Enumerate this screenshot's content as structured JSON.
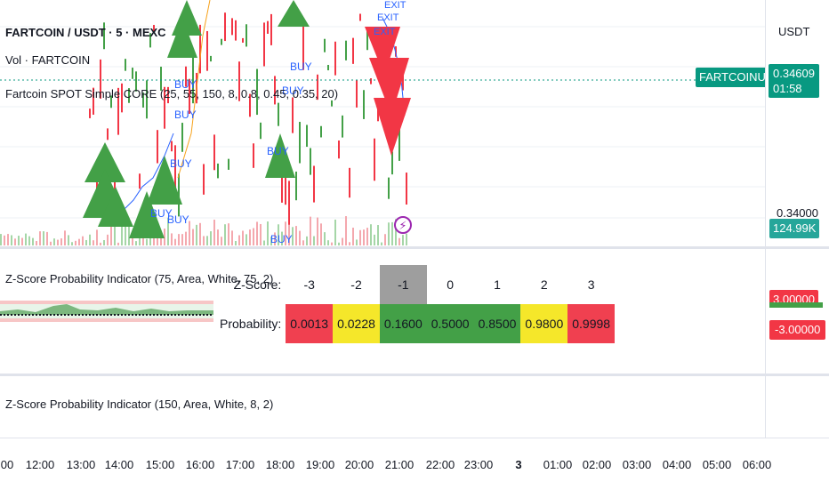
{
  "symbol_legend": "FARTCOIN / USDT · 5 · MEXC",
  "volume_legend": "Vol · FARTCOIN",
  "strategy_legend": "Fartcoin SPOT Simple CORE (25, 55, 150, 8, 0.8, 0.45, 0.35, 20)",
  "currency": "USDT",
  "symbol_tag": "FARTCOINUSDT",
  "last_price": "0.34609",
  "countdown": "01:58",
  "price_level": "0.34000",
  "volume_value": "124.99K",
  "buy_label": "BUY",
  "exit_label": "EXIT",
  "indicator1_legend": "Z-Score Probability Indicator (75, Area, White, 75, 2)",
  "indicator2_legend": "Z-Score Probability Indicator (150, Area, White, 8, 2)",
  "indicator_scale_top": "3.00000",
  "indicator_scale_bottom": "-3.00000",
  "z_table": {
    "z_label": "Z-Score:",
    "prob_label": "Probability:",
    "z_values": [
      "-3",
      "-2",
      "-1",
      "0",
      "1",
      "2",
      "3"
    ],
    "probabilities": [
      "0.0013",
      "0.0228",
      "0.1600",
      "0.5000",
      "0.8500",
      "0.9800",
      "0.9998"
    ],
    "prob_colors": [
      "#f04050",
      "#f5e72a",
      "#43a047",
      "#43a047",
      "#43a047",
      "#f5e72a",
      "#f04050"
    ],
    "highlight_z": "-1",
    "highlight_color": "#9e9e9e"
  },
  "time_axis": [
    "00",
    "12:00",
    "13:00",
    "14:00",
    "15:00",
    "16:00",
    "17:00",
    "18:00",
    "19:00",
    "20:00",
    "21:00",
    "22:00",
    "23:00",
    "3",
    "01:00",
    "02:00",
    "03:00",
    "04:00",
    "05:00",
    "06:00"
  ],
  "colors": {
    "up": "#43a047",
    "down": "#f23645",
    "accent": "#089981",
    "buy_text": "#2962ff"
  }
}
